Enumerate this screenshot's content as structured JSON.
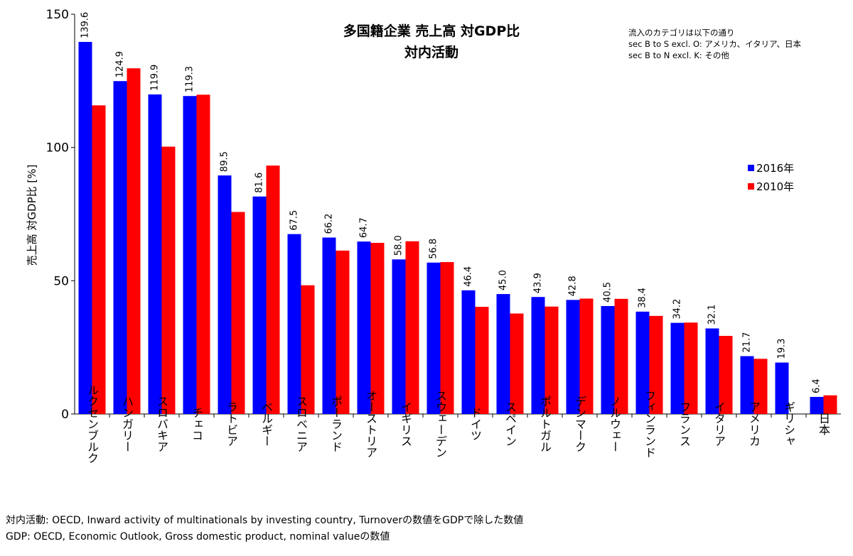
{
  "chart_data": {
    "type": "bar",
    "title": "多国籍企業 売上高 対GDP比",
    "subtitle": "対内活動",
    "ylabel": "売上高 対GDP比 [%]",
    "xlabel": "",
    "ylim": [
      0,
      150
    ],
    "yticks": [
      0,
      50,
      100,
      150
    ],
    "grid": false,
    "legend_position": "right",
    "note_lines": [
      "流入のカテゴリは以下の通り",
      "sec B to S excl. O: アメリカ、イタリア、日本",
      "sec B to N excl. K: その他"
    ],
    "categories": [
      "ルクセンブルク",
      "ハンガリー",
      "スロバキア",
      "チェコ",
      "ラトビア",
      "ベルギー",
      "スロベニア",
      "ポーランド",
      "オーストリア",
      "イギリス",
      "スウェーデン",
      "ドイツ",
      "スペイン",
      "ポルトガル",
      "デンマーク",
      "ノルウェー",
      "フィンランド",
      "フランス",
      "イタリア",
      "アメリカ",
      "ギリシャ",
      "日本"
    ],
    "series": [
      {
        "name": "2016年",
        "color": "#0000ff",
        "values": [
          139.6,
          124.9,
          119.9,
          119.3,
          89.5,
          81.6,
          67.5,
          66.2,
          64.7,
          58.0,
          56.8,
          46.4,
          45.0,
          43.9,
          42.8,
          40.5,
          38.4,
          34.2,
          32.1,
          21.7,
          19.3,
          6.4
        ],
        "labels": [
          "139.6",
          "124.9",
          "119.9",
          "119.3",
          "89.5",
          "81.6",
          "67.5",
          "66.2",
          "64.7",
          "58.0",
          "56.8",
          "46.4",
          "45.0",
          "43.9",
          "42.8",
          "40.5",
          "38.4",
          "34.2",
          "32.1",
          "21.7",
          "19.3",
          "6.4"
        ]
      },
      {
        "name": "2010年",
        "color": "#ff0000",
        "values": [
          115.8,
          129.7,
          100.3,
          119.8,
          75.8,
          93.2,
          48.3,
          61.3,
          64.2,
          64.8,
          57.0,
          40.2,
          37.7,
          40.3,
          43.3,
          43.2,
          36.8,
          34.3,
          29.3,
          20.7,
          null,
          7.0
        ]
      }
    ]
  },
  "footnotes": [
    "対内活動: OECD, Inward activity of multinationals by investing country, Turnoverの数値をGDPで除した数値",
    "GDP: OECD, Economic Outlook, Gross domestic product, nominal valueの数値"
  ]
}
